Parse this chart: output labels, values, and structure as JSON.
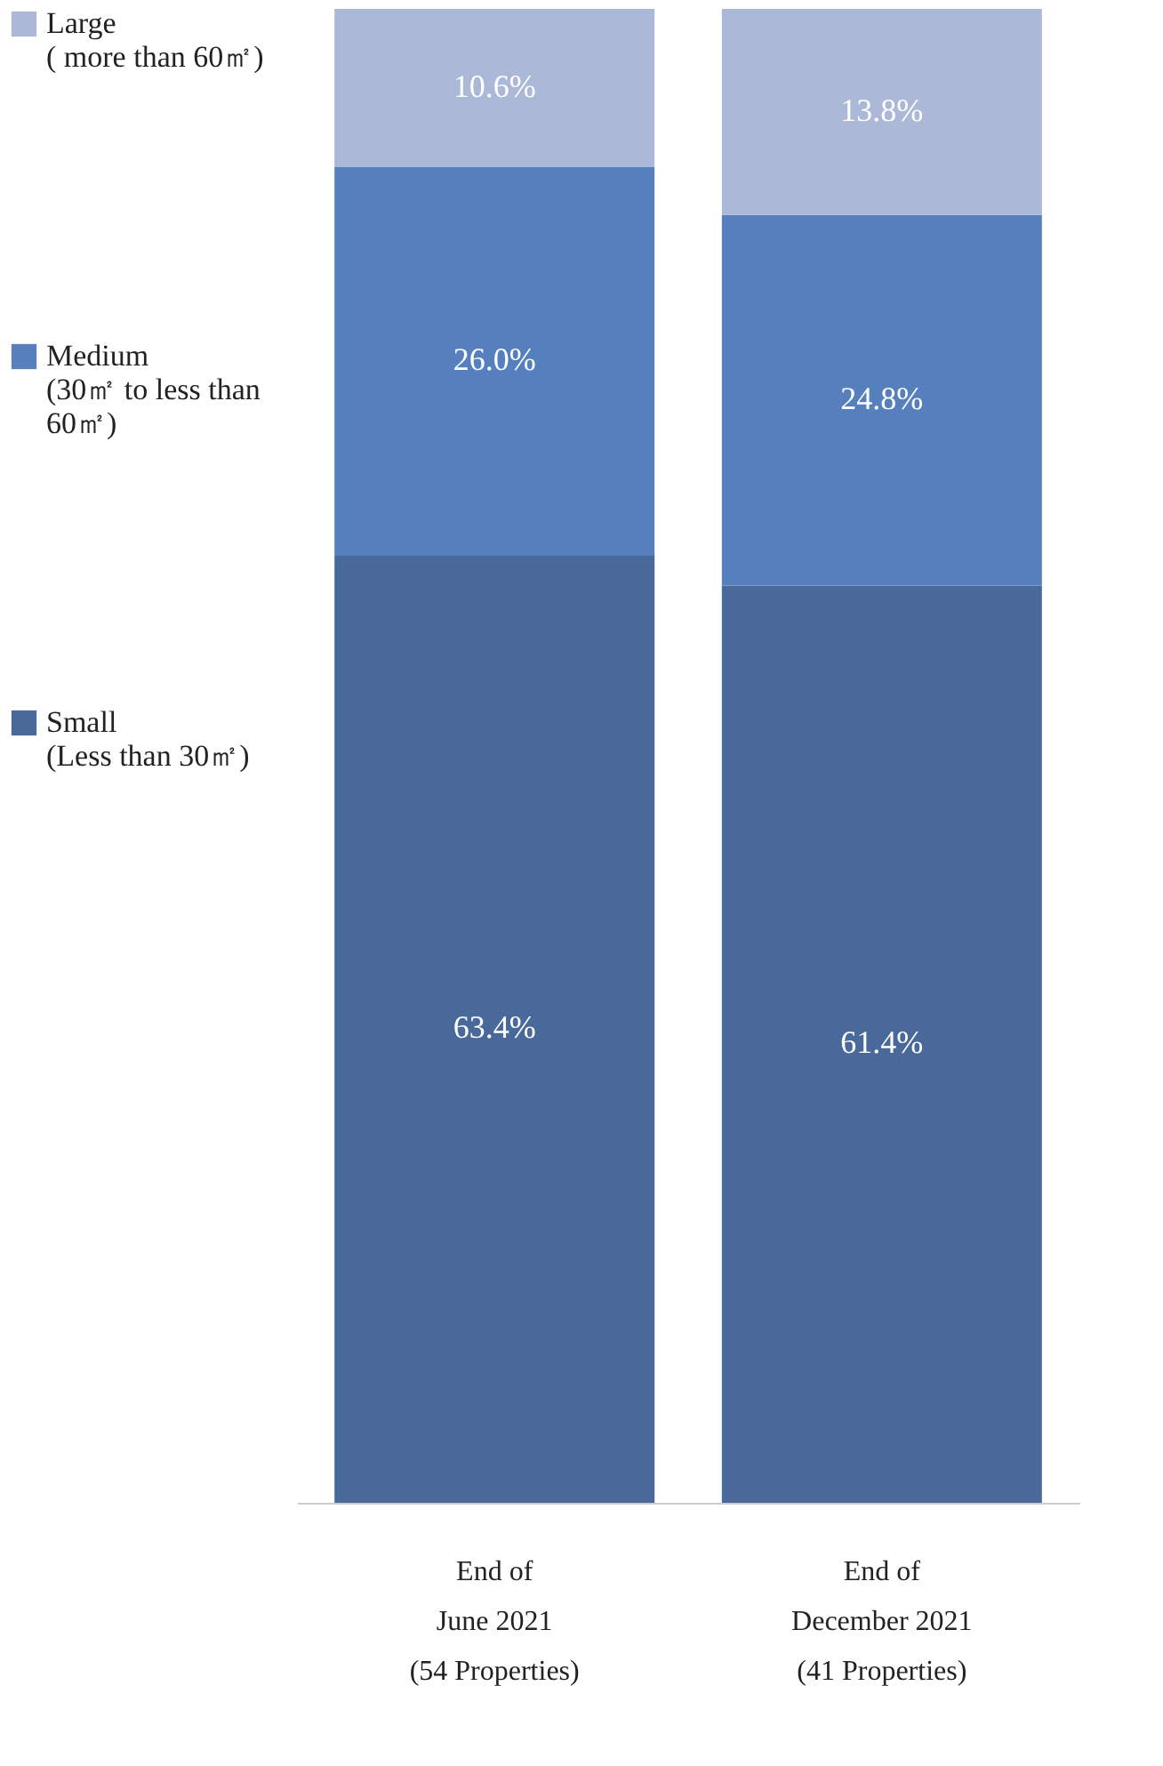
{
  "chart_data": {
    "type": "bar",
    "stacked": true,
    "legend": "left",
    "grid": false,
    "categories": [
      "End of\nJune 2021\n(54 Properties)",
      "End of\nDecember 2021\n(41 Properties)"
    ],
    "series": [
      {
        "name": "Small\n(Less than 30㎡)",
        "color": "#4a699b",
        "values": [
          63.4,
          61.4
        ],
        "value_labels": [
          "63.4%",
          "61.4%"
        ]
      },
      {
        "name": "Medium\n(30㎡ to less than\n60㎡)",
        "color": "#5680bd",
        "values": [
          26.0,
          24.8
        ],
        "value_labels": [
          "26.0%",
          "24.8%"
        ]
      },
      {
        "name": "Large\n( more than 60㎡)",
        "color": "#abb8d8",
        "values": [
          10.6,
          13.8
        ],
        "value_labels": [
          "10.6%",
          "13.8%"
        ]
      }
    ]
  }
}
